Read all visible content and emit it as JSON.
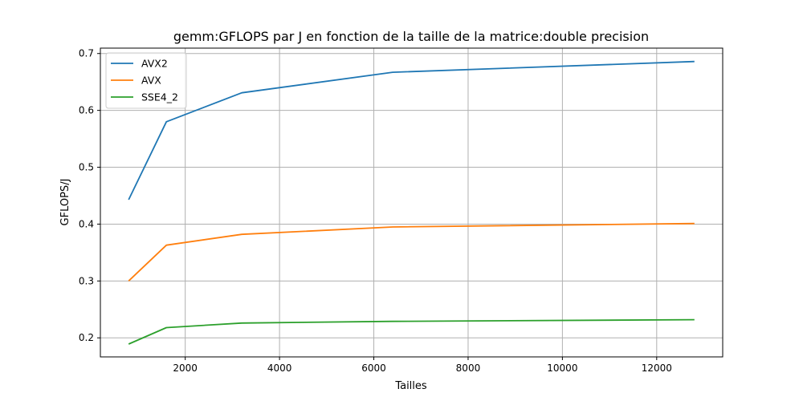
{
  "chart_data": {
    "type": "line",
    "title": "gemm:GFLOPS par J en fonction de la taille de la matrice:double precision",
    "xlabel": "Tailles",
    "ylabel": "GFLOPS/J",
    "x": [
      800,
      1600,
      3200,
      6400,
      12800
    ],
    "xlim": [
      200,
      13400
    ],
    "ylim": [
      0.1665,
      0.7095
    ],
    "xticks": [
      2000,
      4000,
      6000,
      8000,
      10000,
      12000
    ],
    "yticks": [
      0.2,
      0.3,
      0.4,
      0.5,
      0.6,
      0.7
    ],
    "xtick_labels": [
      "2000",
      "4000",
      "6000",
      "8000",
      "10000",
      "12000"
    ],
    "ytick_labels": [
      "0.2",
      "0.3",
      "0.4",
      "0.5",
      "0.6",
      "0.7"
    ],
    "grid": true,
    "legend_position": "top-left",
    "series": [
      {
        "name": "AVX2",
        "color": "#1f77b4",
        "values": [
          0.443,
          0.58,
          0.631,
          0.667,
          0.686
        ]
      },
      {
        "name": "AVX",
        "color": "#ff7f0e",
        "values": [
          0.3,
          0.363,
          0.382,
          0.395,
          0.401
        ]
      },
      {
        "name": "SSE4_2",
        "color": "#2ca02c",
        "values": [
          0.189,
          0.218,
          0.226,
          0.229,
          0.232
        ]
      }
    ]
  }
}
